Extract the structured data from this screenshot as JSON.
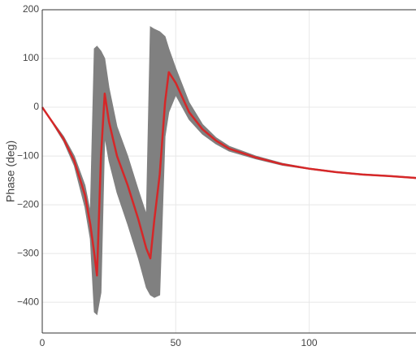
{
  "chart_data": {
    "type": "line",
    "y_label": "Phase (deg)",
    "x": [
      0,
      4,
      8,
      12,
      16,
      18,
      19.5,
      20.5,
      22,
      23.4,
      25,
      28,
      32,
      36,
      39,
      40.5,
      42,
      44,
      46,
      47.4,
      50,
      55,
      60,
      65,
      70,
      80,
      90,
      100,
      110,
      120,
      130,
      140
    ],
    "series": [
      {
        "color": "#d62728",
        "values": [
          0,
          -32,
          -65,
          -110,
          -180,
          -240,
          -300,
          -345,
          -100,
          28,
          -30,
          -100,
          -160,
          -230,
          -290,
          -310,
          -230,
          -138,
          10,
          72,
          50,
          -10,
          -45,
          -68,
          -85,
          -103,
          -117,
          -126,
          -133,
          -138,
          -141,
          -145
        ]
      }
    ],
    "band": {
      "color": "#808080",
      "lower": [
        0,
        -34,
        -70,
        -120,
        -205,
        -270,
        -420,
        -425,
        -380,
        -60,
        -110,
        -175,
        -240,
        -310,
        -370,
        -385,
        -390,
        -385,
        -60,
        -10,
        25,
        -25,
        -55,
        -75,
        -90,
        -106,
        -119,
        -127,
        -134,
        -139,
        -142,
        -146
      ],
      "upper": [
        0,
        -30,
        -60,
        -100,
        -160,
        -215,
        120,
        125,
        115,
        100,
        40,
        -40,
        -100,
        -170,
        -220,
        165,
        160,
        155,
        145,
        120,
        80,
        10,
        -35,
        -62,
        -80,
        -100,
        -115,
        -125,
        -132,
        -137,
        -140,
        -144
      ]
    },
    "xlim": [
      0,
      140
    ],
    "ylim": [
      -463,
      200
    ],
    "xticks": [
      0,
      50,
      100
    ],
    "yticks": [
      {
        "value": -400,
        "label": "−400"
      },
      {
        "value": -300,
        "label": "−300"
      },
      {
        "value": -200,
        "label": "−200"
      },
      {
        "value": -100,
        "label": "−100"
      },
      0,
      100,
      200
    ],
    "grid": true
  }
}
